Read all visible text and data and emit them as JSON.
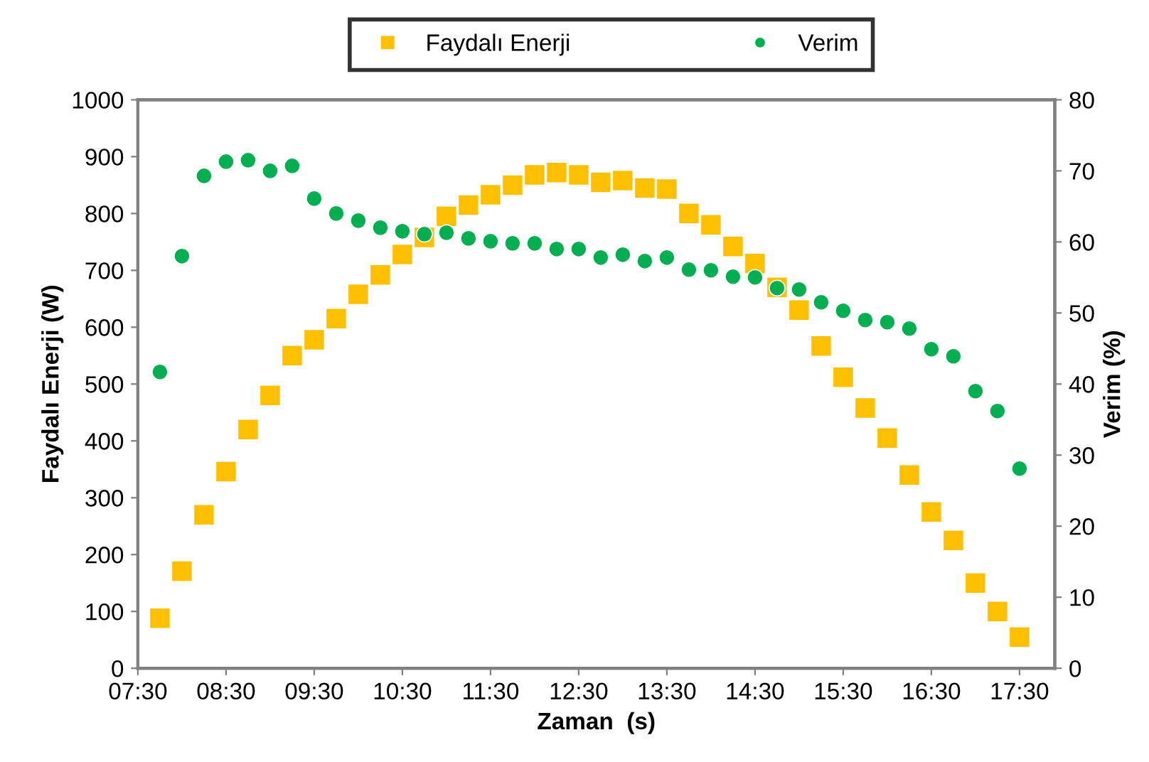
{
  "chart_data": {
    "type": "scatter",
    "xlabel": "Zaman  (s)",
    "ylabel": "Faydalı Enerji (W)",
    "y2label": "Verim (%)",
    "x": [
      7.75,
      8,
      8.25,
      8.5,
      8.75,
      9,
      9.25,
      9.5,
      9.75,
      10,
      10.25,
      10.5,
      10.75,
      11,
      11.25,
      11.5,
      11.75,
      12,
      12.25,
      12.5,
      12.75,
      13,
      13.25,
      13.5,
      13.75,
      14,
      14.25,
      14.5,
      14.75,
      15,
      15.25,
      15.5,
      15.75,
      16,
      16.25,
      16.5,
      16.75,
      17,
      17.25,
      17.5
    ],
    "series": [
      {
        "name": "Faydalı Enerji",
        "color": "#ffc000",
        "marker": "square",
        "values": [
          88,
          171,
          270,
          346,
          420,
          480,
          550,
          578,
          615,
          658,
          692,
          728,
          758,
          795,
          815,
          833,
          850,
          868,
          872,
          868,
          855,
          858,
          845,
          843,
          800,
          780,
          742,
          712,
          670,
          630,
          567,
          512,
          458,
          405,
          340,
          275,
          225,
          150,
          100,
          55
        ]
      },
      {
        "name": "Verim",
        "color": "#00b050",
        "marker": "circle",
        "axis": "y2",
        "values": [
          41.7,
          58,
          69.3,
          71.3,
          71.5,
          70,
          70.7,
          66.1,
          64,
          63,
          62,
          61.5,
          61.1,
          61.3,
          60.5,
          60.1,
          59.8,
          59.8,
          59,
          59,
          57.8,
          58.2,
          57.3,
          57.8,
          56.1,
          56,
          55.1,
          55,
          53.5,
          53.3,
          51.5,
          50.3,
          49,
          48.7,
          47.8,
          44.9,
          43.9,
          39,
          36.2,
          28.1
        ]
      }
    ],
    "xlim": [
      7.5,
      17.9
    ],
    "xticks": [
      {
        "value": 7.5,
        "label": "07:30"
      },
      {
        "value": 8.5,
        "label": "08:30"
      },
      {
        "value": 9.5,
        "label": "09:30"
      },
      {
        "value": 10.5,
        "label": "10:30"
      },
      {
        "value": 11.5,
        "label": "11:30"
      },
      {
        "value": 12.5,
        "label": "12:30"
      },
      {
        "value": 13.5,
        "label": "13:30"
      },
      {
        "value": 14.5,
        "label": "14:30"
      },
      {
        "value": 15.5,
        "label": "15:30"
      },
      {
        "value": 16.5,
        "label": "16:30"
      },
      {
        "value": 17.5,
        "label": "17:30"
      }
    ],
    "ylim": [
      0,
      1000
    ],
    "yticks": [
      0,
      100,
      200,
      300,
      400,
      500,
      600,
      700,
      800,
      900,
      1000
    ],
    "y2lim": [
      0,
      80
    ],
    "y2ticks": [
      0,
      10,
      20,
      30,
      40,
      50,
      60,
      70,
      80
    ],
    "grid": false,
    "legend": "top"
  }
}
